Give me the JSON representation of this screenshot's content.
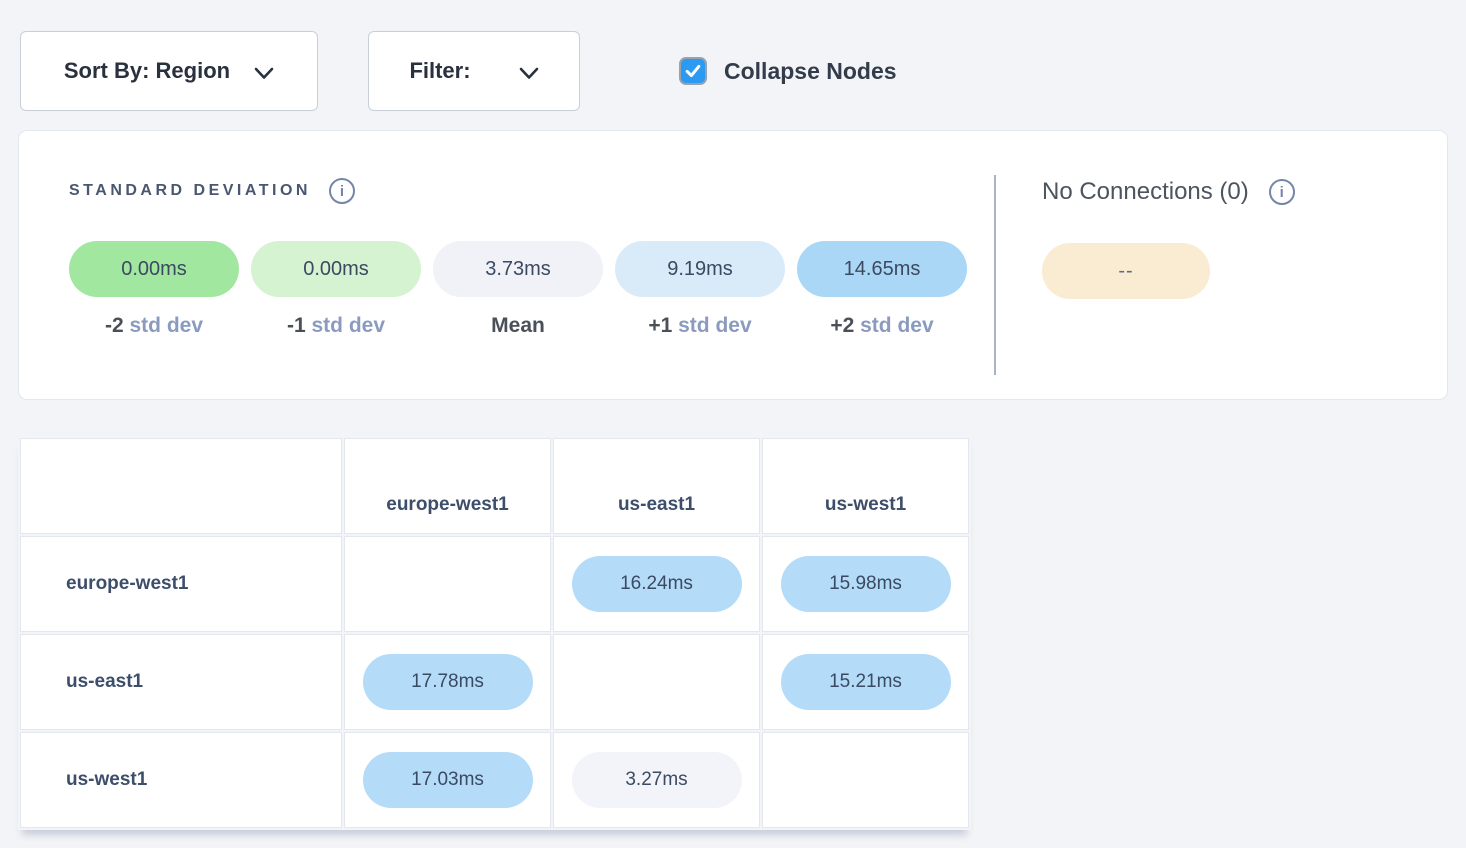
{
  "controls": {
    "sort_by": {
      "label": "Sort By: Region"
    },
    "filter": {
      "label": "Filter:"
    },
    "collapse_nodes": {
      "label": "Collapse Nodes",
      "checked": true
    }
  },
  "legend": {
    "std_dev": {
      "title": "STANDARD DEVIATION",
      "info_icon": "info-circle",
      "items": [
        {
          "value": "0.00ms",
          "prefix": "-2",
          "suffix": "std dev",
          "color": "#a2e79f"
        },
        {
          "value": "0.00ms",
          "prefix": "-1",
          "suffix": "std dev",
          "color": "#d6f3d1"
        },
        {
          "value": "3.73ms",
          "prefix": "Mean",
          "suffix": "",
          "color": "#f0f2f8"
        },
        {
          "value": "9.19ms",
          "prefix": "+1",
          "suffix": "std dev",
          "color": "#d9eaf9"
        },
        {
          "value": "14.65ms",
          "prefix": "+2",
          "suffix": "std dev",
          "color": "#abd7f6"
        }
      ]
    },
    "no_connections": {
      "title": "No Connections (0)",
      "info_icon": "info-circle",
      "pill_value": "--",
      "pill_color": "#faecd3"
    }
  },
  "matrix": {
    "columns": [
      "europe-west1",
      "us-east1",
      "us-west1"
    ],
    "rows": [
      {
        "label": "europe-west1",
        "cells": [
          null,
          {
            "value": "16.24ms",
            "tone": "blue"
          },
          {
            "value": "15.98ms",
            "tone": "blue"
          }
        ]
      },
      {
        "label": "us-east1",
        "cells": [
          {
            "value": "17.78ms",
            "tone": "blue"
          },
          null,
          {
            "value": "15.21ms",
            "tone": "blue"
          }
        ]
      },
      {
        "label": "us-west1",
        "cells": [
          {
            "value": "17.03ms",
            "tone": "blue"
          },
          {
            "value": "3.27ms",
            "tone": "neutral"
          },
          null
        ]
      }
    ],
    "tones": {
      "blue": "#b4dbf8",
      "neutral": "#f2f4f9"
    }
  },
  "colors": {
    "page_bg": "#f2f4f7",
    "accent_blue": "#2b9af3",
    "panel_border": "#e3e7ee"
  }
}
